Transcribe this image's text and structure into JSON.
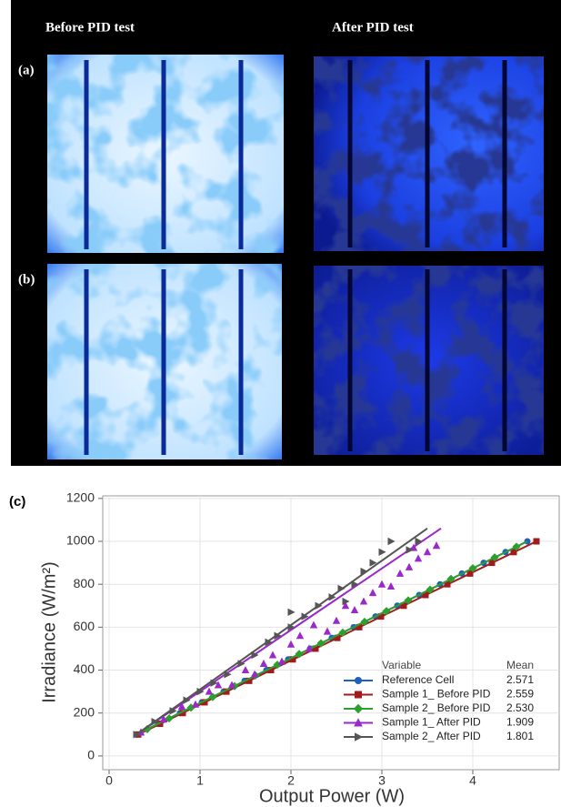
{
  "panels": {
    "before_label": "Before PID test",
    "after_label": "After PID test",
    "a_label": "(a)",
    "b_label": "(b)",
    "c_label": "(c)"
  },
  "chart_data": {
    "type": "scatter",
    "x_label": "Output Power (W)",
    "y_label": "Irradiance (W/m²)",
    "xlim": [
      -0.07,
      4.95
    ],
    "ylim": [
      -64,
      1212
    ],
    "xticks": [
      0,
      1,
      2,
      3,
      4
    ],
    "yticks": [
      0,
      200,
      400,
      600,
      800,
      1000,
      1200
    ],
    "grid": true,
    "legend_position": "lower right",
    "legend_title": "Variable",
    "legend_mean_title": "Mean",
    "series": [
      {
        "name": "Reference Cell",
        "mean": "2.571",
        "color": "#1f5fbf",
        "marker": "circle",
        "x": [
          0.3,
          0.54,
          0.78,
          1.02,
          1.26,
          1.49,
          1.73,
          1.97,
          2.21,
          2.45,
          2.69,
          2.93,
          3.17,
          3.41,
          3.64,
          3.88,
          4.12,
          4.36,
          4.6
        ],
        "values": [
          100,
          150,
          200,
          250,
          300,
          350,
          400,
          450,
          500,
          550,
          600,
          650,
          700,
          750,
          800,
          850,
          900,
          950,
          1000
        ],
        "fit": {
          "x": [
            0.3,
            4.6
          ],
          "y": [
            100,
            1000
          ]
        }
      },
      {
        "name": "Sample 1_ Before PID",
        "mean": "2.559",
        "color": "#a01c1c",
        "marker": "square",
        "x": [
          0.32,
          0.56,
          0.81,
          1.05,
          1.29,
          1.54,
          1.78,
          2.02,
          2.27,
          2.51,
          2.75,
          2.99,
          3.24,
          3.48,
          3.72,
          3.97,
          4.21,
          4.45,
          4.7
        ],
        "values": [
          100,
          150,
          200,
          250,
          300,
          350,
          400,
          450,
          500,
          550,
          600,
          650,
          700,
          750,
          800,
          850,
          900,
          950,
          1000
        ],
        "fit": {
          "x": [
            0.32,
            4.7
          ],
          "y": [
            100,
            1000
          ]
        }
      },
      {
        "name": "Sample 2_ Before PID",
        "mean": "2.530",
        "color": "#2e9e2e",
        "marker": "diamond",
        "x": [
          0.42,
          0.66,
          0.9,
          1.14,
          1.38,
          1.61,
          1.85,
          2.09,
          2.33,
          2.57,
          2.81,
          3.05,
          3.29,
          3.53,
          3.76,
          4.0,
          4.24,
          4.48
        ],
        "values": [
          125,
          175,
          225,
          275,
          325,
          375,
          425,
          475,
          525,
          575,
          625,
          675,
          725,
          775,
          825,
          875,
          925,
          975
        ],
        "fit": {
          "x": [
            0.3,
            4.6
          ],
          "y": [
            100,
            1000
          ]
        }
      },
      {
        "name": "Sample 1_ After PID",
        "mean": "1.909",
        "color": "#9b28c8",
        "marker": "triangle-up",
        "x": [
          0.35,
          0.6,
          0.8,
          0.95,
          1.1,
          1.2,
          1.35,
          1.5,
          1.6,
          1.7,
          1.8,
          1.9,
          2.0,
          2.1,
          2.2,
          2.25,
          2.4,
          2.5,
          2.6,
          2.7,
          2.8,
          2.9,
          3.0,
          3.1,
          3.2,
          3.3,
          3.4,
          3.5,
          3.6,
          3.35
        ],
        "values": [
          110,
          170,
          230,
          240,
          300,
          330,
          330,
          400,
          380,
          430,
          470,
          440,
          520,
          560,
          500,
          610,
          580,
          630,
          700,
          680,
          720,
          760,
          800,
          790,
          850,
          880,
          920,
          950,
          980,
          970
        ],
        "fit": {
          "x": [
            0.3,
            3.65
          ],
          "y": [
            100,
            1060
          ]
        }
      },
      {
        "name": "Sample 2_ After PID",
        "mean": "1.801",
        "color": "#555555",
        "marker": "triangle-right",
        "x": [
          0.3,
          0.5,
          0.7,
          0.85,
          1.0,
          1.15,
          1.3,
          1.45,
          1.6,
          1.75,
          1.85,
          2.0,
          2.0,
          2.15,
          2.3,
          2.45,
          2.55,
          2.7,
          2.8,
          2.9,
          3.0,
          3.1,
          3.3,
          3.4,
          2.6
        ],
        "values": [
          100,
          160,
          210,
          260,
          300,
          340,
          380,
          430,
          470,
          530,
          560,
          600,
          670,
          650,
          700,
          740,
          780,
          800,
          860,
          900,
          950,
          1000,
          960,
          1000,
          720
        ],
        "fit": {
          "x": [
            0.3,
            3.5
          ],
          "y": [
            100,
            1060
          ]
        }
      }
    ]
  }
}
